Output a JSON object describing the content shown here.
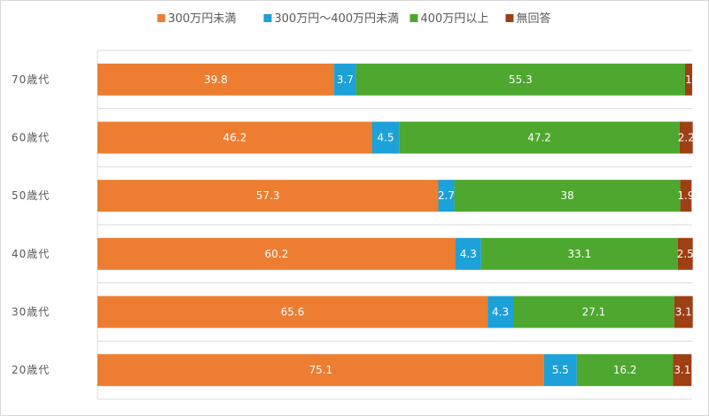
{
  "chart_data": {
    "type": "bar",
    "orientation": "horizontal",
    "stacked": true,
    "percent": true,
    "title": "",
    "xlabel": "",
    "ylabel": "",
    "xlim": [
      0,
      100
    ],
    "grid": true,
    "legend_position": "top",
    "categories": [
      "70歳代",
      "60歳代",
      "50歳代",
      "40歳代",
      "30歳代",
      "20歳代"
    ],
    "series": [
      {
        "name": "300万円未満",
        "color": "#ED7D31",
        "values": [
          39.8,
          46.2,
          57.3,
          60.2,
          65.6,
          75.1
        ],
        "labels": [
          "39.8",
          "46.2",
          "57.3",
          "60.2",
          "65.6",
          "75.1"
        ]
      },
      {
        "name": "300万円～400万円未満",
        "color": "#1CA1D8",
        "values": [
          3.7,
          4.5,
          2.7,
          4.3,
          4.3,
          5.5
        ],
        "labels": [
          "3.7",
          "4.5",
          "2.7",
          "4.3",
          "4.3",
          "5.5"
        ]
      },
      {
        "name": "400万円以上",
        "color": "#4EA72E",
        "values": [
          55.3,
          47.2,
          38.0,
          33.1,
          27.1,
          16.2
        ],
        "labels": [
          "55.3",
          "47.2",
          "38",
          "33.1",
          "27.1",
          "16.2"
        ]
      },
      {
        "name": "無回答",
        "color": "#9E3F14",
        "values": [
          1.2,
          2.2,
          1.9,
          2.5,
          3.1,
          3.1
        ],
        "labels": [
          "1",
          "2.2",
          "1.9",
          "2.5",
          "3.1",
          "3.1"
        ]
      }
    ]
  }
}
